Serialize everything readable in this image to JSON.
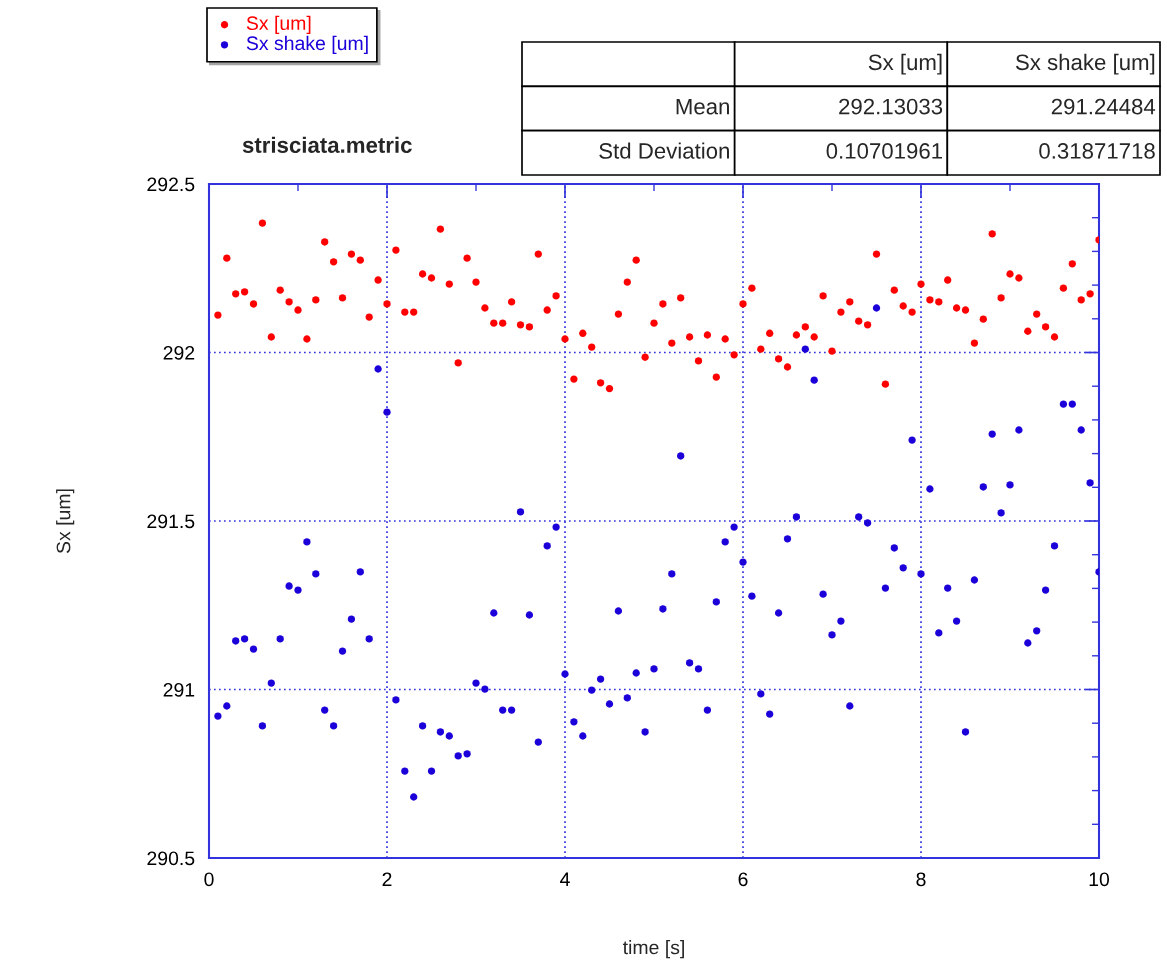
{
  "chart_data": {
    "type": "scatter",
    "title": "strisciata.metric",
    "xlabel": "time [s]",
    "ylabel": "Sx [um]",
    "x": [
      0.1,
      0.2,
      0.3,
      0.4,
      0.5,
      0.6,
      0.7,
      0.8,
      0.9,
      1.0,
      1.1,
      1.2,
      1.3,
      1.4,
      1.5,
      1.6,
      1.7,
      1.8,
      1.9,
      2.0,
      2.1,
      2.2,
      2.3,
      2.4,
      2.5,
      2.6,
      2.7,
      2.8,
      2.9,
      3.0,
      3.1,
      3.2,
      3.3,
      3.4,
      3.5,
      3.6,
      3.7,
      3.8,
      3.9,
      4.0,
      4.1,
      4.2,
      4.3,
      4.4,
      4.5,
      4.6,
      4.7,
      4.8,
      4.9,
      5.0,
      5.1,
      5.2,
      5.3,
      5.4,
      5.5,
      5.6,
      5.7,
      5.8,
      5.9,
      6.0,
      6.1,
      6.2,
      6.3,
      6.4,
      6.5,
      6.6,
      6.7,
      6.8,
      6.9,
      7.0,
      7.1,
      7.2,
      7.3,
      7.4,
      7.5,
      7.6,
      7.7,
      7.8,
      7.9,
      8.0,
      8.1,
      8.2,
      8.3,
      8.4,
      8.5,
      8.6,
      8.7,
      8.8,
      8.9,
      9.0,
      9.1,
      9.2,
      9.3,
      9.4,
      9.5,
      9.6,
      9.7,
      9.8,
      9.9,
      10.0
    ],
    "series": [
      {
        "name": "Sx [um]",
        "color": "#ff0000",
        "values": [
          292.111,
          292.28,
          292.174,
          292.18,
          292.144,
          292.384,
          292.046,
          292.185,
          292.15,
          292.126,
          292.04,
          292.156,
          292.328,
          292.269,
          292.162,
          292.292,
          292.274,
          292.105,
          292.215,
          292.144,
          292.304,
          292.12,
          292.12,
          292.233,
          292.221,
          292.366,
          292.203,
          291.969,
          292.28,
          292.209,
          292.132,
          292.087,
          292.087,
          292.15,
          292.082,
          292.076,
          292.292,
          292.126,
          292.168,
          292.04,
          291.921,
          292.057,
          292.016,
          291.91,
          291.893,
          292.114,
          292.209,
          292.274,
          291.986,
          292.087,
          292.144,
          292.028,
          292.162,
          292.046,
          291.975,
          292.052,
          291.927,
          292.04,
          291.993,
          292.144,
          292.191,
          292.01,
          292.057,
          291.981,
          291.957,
          292.052,
          292.076,
          292.046,
          292.168,
          292.004,
          292.12,
          292.15,
          292.093,
          292.082,
          292.292,
          291.906,
          292.185,
          292.138,
          292.12,
          292.203,
          292.156,
          292.15,
          292.215,
          292.132,
          292.126,
          292.028,
          292.099,
          292.352,
          292.162,
          292.233,
          292.221,
          292.063,
          292.114,
          292.076,
          292.046,
          292.191,
          292.263,
          292.156,
          292.174,
          292.334
        ]
      },
      {
        "name": "Sx shake [um]",
        "color": "#1c00d9",
        "values": [
          290.921,
          290.951,
          291.144,
          291.15,
          291.12,
          290.892,
          291.019,
          291.15,
          291.307,
          291.295,
          291.438,
          291.343,
          290.939,
          290.892,
          291.114,
          291.209,
          291.349,
          291.15,
          291.951,
          291.823,
          290.969,
          290.758,
          290.681,
          290.892,
          290.758,
          290.874,
          290.862,
          290.803,
          290.809,
          291.019,
          291.001,
          291.227,
          290.939,
          290.939,
          291.527,
          291.221,
          290.844,
          291.426,
          291.482,
          291.046,
          290.904,
          290.862,
          290.998,
          291.031,
          290.957,
          291.233,
          290.975,
          291.049,
          290.874,
          291.061,
          291.239,
          291.343,
          291.693,
          291.079,
          291.061,
          290.939,
          291.26,
          291.438,
          291.482,
          291.378,
          291.277,
          290.987,
          290.927,
          291.227,
          291.447,
          291.512,
          292.01,
          291.918,
          291.283,
          291.162,
          291.203,
          290.951,
          291.512,
          291.494,
          292.132,
          291.301,
          291.42,
          291.361,
          291.74,
          291.343,
          291.595,
          291.168,
          291.301,
          291.203,
          290.874,
          291.325,
          291.601,
          291.758,
          291.524,
          291.607,
          291.77,
          291.138,
          291.174,
          291.295,
          291.426,
          291.847,
          291.847,
          291.77,
          291.613,
          291.349
        ]
      }
    ],
    "xlim": [
      0,
      10
    ],
    "xticks": [
      0,
      2,
      4,
      6,
      8,
      10
    ],
    "ylim": [
      290.5,
      292.5
    ],
    "yticks": [
      290.5,
      291,
      291.5,
      292,
      292.5
    ],
    "grid": true,
    "legend": "top left",
    "marker": "circle",
    "annotations": [
      "Sx [um]",
      "Sx shake [um]",
      "Mean",
      "292.13033",
      "291.24484",
      "Std Deviation",
      "0.10701961",
      "0.31871718"
    ]
  }
}
